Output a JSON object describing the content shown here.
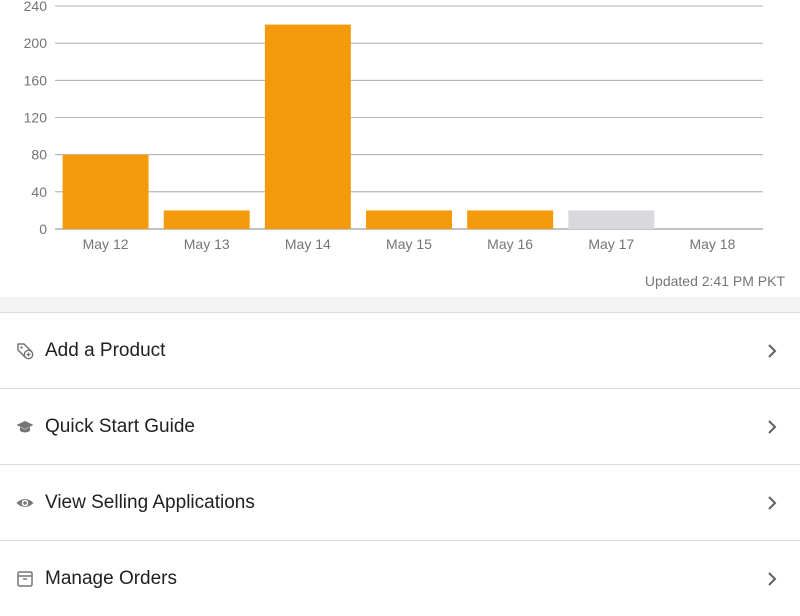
{
  "chart_data": {
    "type": "bar",
    "categories": [
      "May 12",
      "May 13",
      "May 14",
      "May 15",
      "May 16",
      "May 17",
      "May 18"
    ],
    "values": [
      80,
      20,
      220,
      20,
      20,
      20,
      0
    ],
    "yticks": [
      "0",
      "40",
      "80",
      "120",
      "160",
      "200",
      "240"
    ],
    "ylim": [
      0,
      240
    ],
    "grid": true,
    "colors": {
      "bar": "#f59a0b",
      "bar_pending": "#d9d8dc",
      "grid": "#9e9e9e",
      "tick_text": "#757575"
    },
    "pending_categories": [
      "May 17"
    ]
  },
  "updated_text": "Updated 2:41 PM PKT",
  "menu": {
    "items": [
      {
        "label": "Add a Product",
        "icon": "tag-add-icon"
      },
      {
        "label": "Quick Start Guide",
        "icon": "graduation-cap-icon"
      },
      {
        "label": "View Selling Applications",
        "icon": "eye-icon"
      },
      {
        "label": "Manage Orders",
        "icon": "box-icon"
      }
    ]
  }
}
